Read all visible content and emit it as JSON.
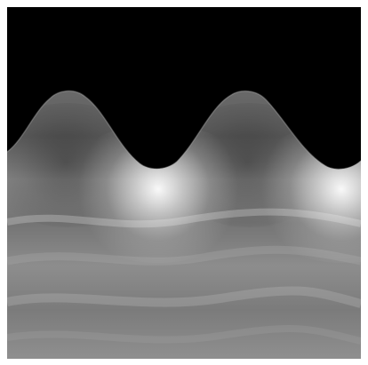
{
  "scene": {
    "subject": "rendered-wave-surface",
    "palette": {
      "sky": "#000000",
      "surface_dark": "#3f3f3f",
      "surface_mid": "#707070",
      "surface_light": "#9b9b9b",
      "highlight": "#ffffff",
      "frame": "#ffffff"
    }
  }
}
